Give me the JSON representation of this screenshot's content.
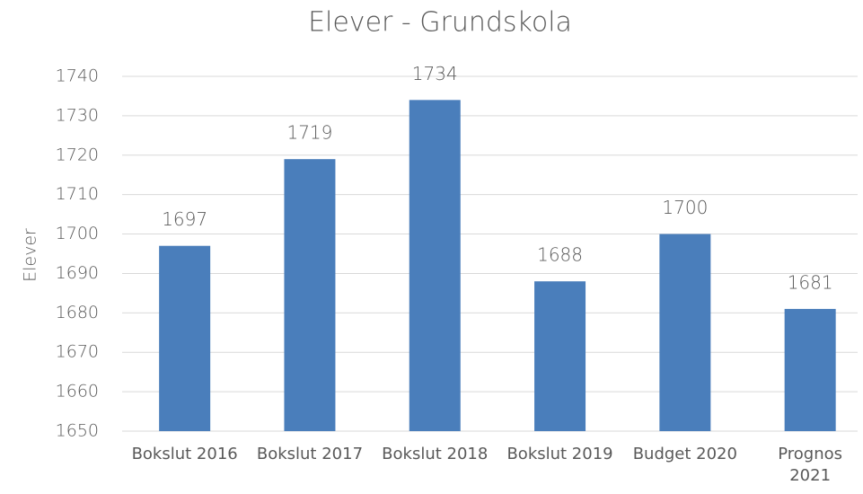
{
  "chart_data": {
    "type": "bar",
    "title": "Elever - Grundskola",
    "y_label": "Elever",
    "categories": [
      "Bokslut 2016",
      "Bokslut 2017",
      "Bokslut 2018",
      "Bokslut 2019",
      "Budget 2020",
      "Prognos 2021"
    ],
    "values": [
      1697,
      1719,
      1734,
      1688,
      1700,
      1681
    ],
    "color": "#4a7ebb",
    "ylim": [
      1650,
      1740
    ],
    "yticks": [
      1650,
      1660,
      1670,
      1680,
      1690,
      1700,
      1710,
      1720,
      1730,
      1740
    ],
    "grid": true
  }
}
